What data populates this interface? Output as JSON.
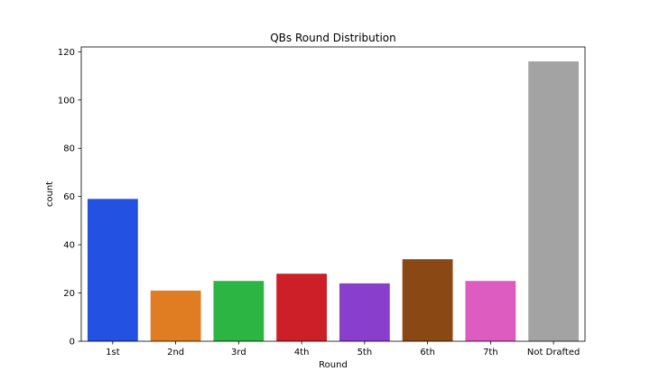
{
  "chart_data": {
    "type": "bar",
    "title": "QBs Round Distribution",
    "xlabel": "Round",
    "ylabel": "count",
    "categories": [
      "1st",
      "2nd",
      "3rd",
      "4th",
      "5th",
      "6th",
      "7th",
      "Not Drafted"
    ],
    "values": [
      59,
      21,
      25,
      28,
      24,
      34,
      25,
      116
    ],
    "colors": [
      "#2351e2",
      "#e07d22",
      "#2db543",
      "#cc1f27",
      "#8a3fcc",
      "#8a4914",
      "#dc5cbf",
      "#a3a3a3"
    ],
    "ylim": [
      0,
      122
    ],
    "yticks": [
      0,
      20,
      40,
      60,
      80,
      100,
      120
    ],
    "grid": false,
    "legend": "none"
  }
}
